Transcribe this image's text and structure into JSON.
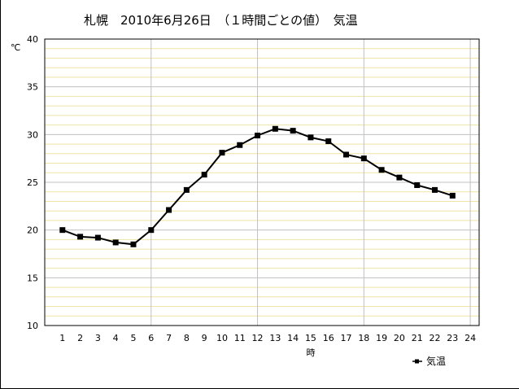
{
  "chart_data": {
    "type": "line",
    "title": "札幌　2010年6月26日　（１時間ごとの値）　気温",
    "xlabel": "時",
    "ylabel": "℃",
    "xlim": [
      0,
      24.5
    ],
    "ylim": [
      10,
      40
    ],
    "x_ticks": [
      1,
      2,
      3,
      4,
      5,
      6,
      7,
      8,
      9,
      10,
      11,
      12,
      13,
      14,
      15,
      16,
      17,
      18,
      19,
      20,
      21,
      22,
      23,
      24
    ],
    "y_ticks": [
      10,
      15,
      20,
      25,
      30,
      35,
      40
    ],
    "x_vertical_grid": [
      6,
      12,
      18,
      24
    ],
    "grid": true,
    "legend_position": "bottom-right",
    "colors": {
      "line": "#000000",
      "minor_grid": "#efe3a5",
      "major_grid": "#c0c0c0",
      "axis": "#000000"
    },
    "series": [
      {
        "name": "気温",
        "x": [
          1,
          2,
          3,
          4,
          5,
          6,
          7,
          8,
          9,
          10,
          11,
          12,
          13,
          14,
          15,
          16,
          17,
          18,
          19,
          20,
          21,
          22,
          23
        ],
        "values": [
          20.0,
          19.3,
          19.2,
          18.7,
          18.5,
          20.0,
          22.1,
          24.2,
          25.8,
          28.1,
          28.9,
          29.9,
          30.6,
          30.4,
          29.7,
          29.3,
          27.9,
          27.5,
          26.3,
          25.5,
          24.7,
          24.2,
          23.6
        ]
      }
    ]
  }
}
